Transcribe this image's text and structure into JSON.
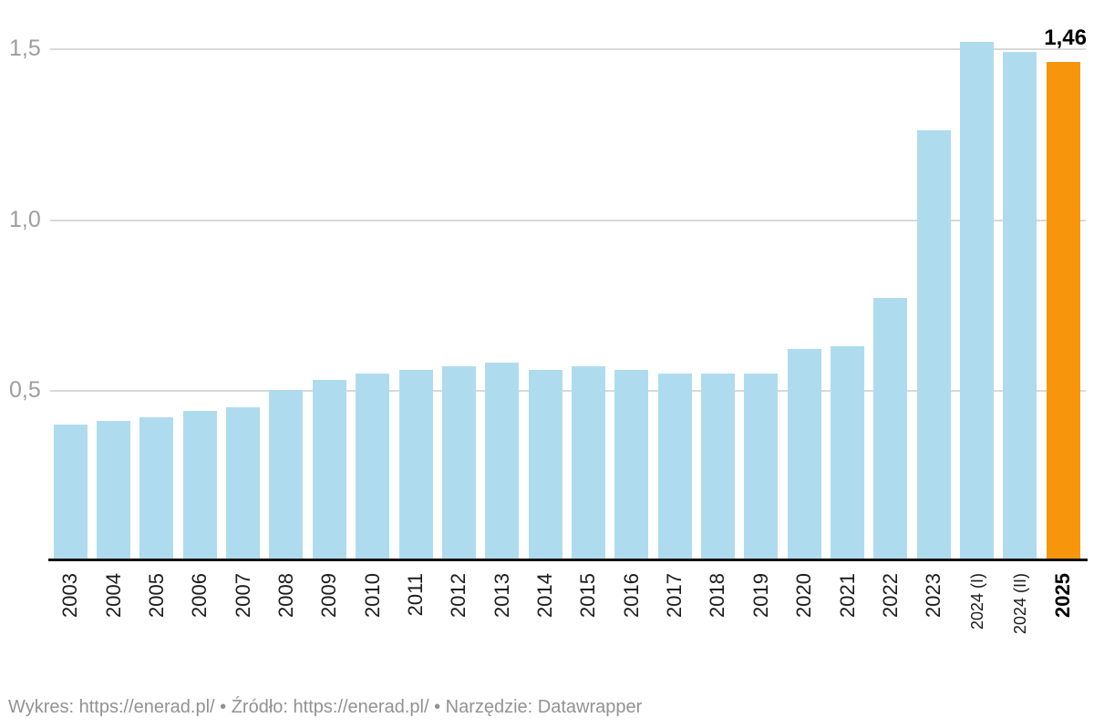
{
  "chart_data": {
    "type": "bar",
    "title": "",
    "xlabel": "",
    "ylabel": "",
    "categories": [
      "2003",
      "2004",
      "2005",
      "2006",
      "2007",
      "2008",
      "2009",
      "2010",
      "2011",
      "2012",
      "2013",
      "2014",
      "2015",
      "2016",
      "2017",
      "2018",
      "2019",
      "2020",
      "2021",
      "2022",
      "2023",
      "2024 (I)",
      "2024 (II)",
      "2025"
    ],
    "values": [
      0.4,
      0.41,
      0.42,
      0.44,
      0.45,
      0.5,
      0.53,
      0.55,
      0.56,
      0.57,
      0.58,
      0.56,
      0.57,
      0.56,
      0.55,
      0.55,
      0.55,
      0.62,
      0.63,
      0.77,
      1.26,
      1.52,
      1.49,
      1.46
    ],
    "highlight_index": 23,
    "highlight_label": "1,46",
    "bar_color": "#AEDCEE",
    "highlight_color": "#F7950C",
    "y_ticks": [
      {
        "label": "0,5",
        "value": 0.5
      },
      {
        "label": "1,0",
        "value": 1.0
      },
      {
        "label": "1,5",
        "value": 1.5
      }
    ],
    "ylim": [
      0,
      1.55
    ],
    "grid": true,
    "legend_position": "none",
    "decimal_separator": ","
  },
  "footer": {
    "segments": [
      {
        "text": "Wykres: ",
        "link": false
      },
      {
        "text": "https://enerad.pl/",
        "link": true
      },
      {
        "text": " • ",
        "link": false
      },
      {
        "text": "Źródło: ",
        "link": false
      },
      {
        "text": "https://enerad.pl/",
        "link": true
      },
      {
        "text": " • ",
        "link": false
      },
      {
        "text": "Narzędzie: ",
        "link": false
      },
      {
        "text": "Datawrapper",
        "link": true
      }
    ]
  }
}
